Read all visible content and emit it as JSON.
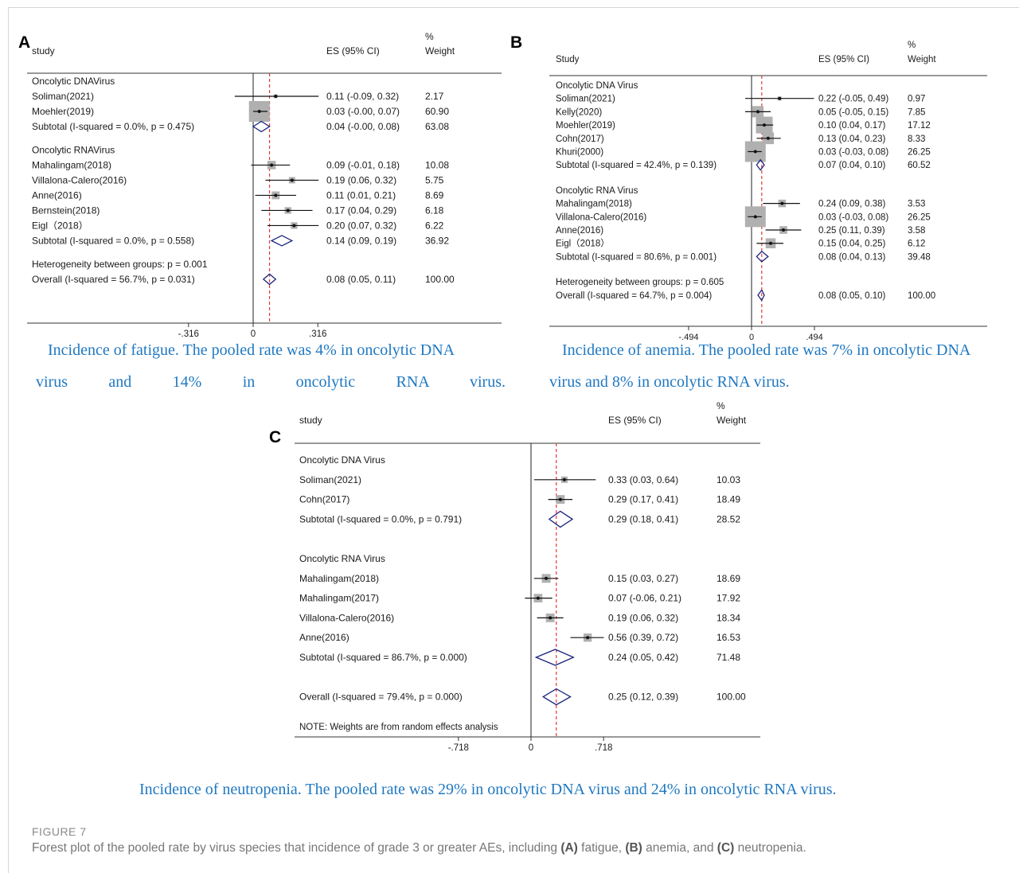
{
  "figure": {
    "label": "FIGURE 7",
    "caption_parts": [
      {
        "text": "Forest plot of the pooled rate by virus species that incidence of grade 3 or greater AEs, including ",
        "bold": false
      },
      {
        "text": "(A)",
        "bold": true
      },
      {
        "text": " fatigue, ",
        "bold": false
      },
      {
        "text": "(B)",
        "bold": true
      },
      {
        "text": " anemia, and ",
        "bold": false
      },
      {
        "text": "(C)",
        "bold": true
      },
      {
        "text": " neutropenia.",
        "bold": false
      }
    ]
  },
  "captions": {
    "A_line1": "Incidence of fatigue. The pooled rate was 4% in oncolytic DNA",
    "A_line2": "virus and 14% in oncolytic RNA virus.",
    "B_line1": "Incidence of anemia. The pooled rate was 7% in oncolytic DNA",
    "B_line2": "virus and 8% in oncolytic RNA virus.",
    "C_line1": "Incidence of neutropenia. The pooled rate was 29% in oncolytic DNA virus and 24% in oncolytic RNA virus."
  },
  "colors": {
    "caption": "#1f78c1",
    "diamond": "#1a237e",
    "ref_line": "#e53935",
    "box": "#b0b0b0"
  },
  "chart_data": [
    {
      "type": "forest",
      "panel": "A",
      "header": {
        "study": "study",
        "es": "ES (95% CI)",
        "pct": "%",
        "weight": "Weight"
      },
      "x_ticks": [
        {
          "v": -0.316,
          "label": "-.316"
        },
        {
          "v": 0,
          "label": "0"
        },
        {
          "v": 0.316,
          "label": ".316"
        }
      ],
      "overall_line": 0.08,
      "groups": [
        {
          "title": "Oncolytic DNAVirus",
          "studies": [
            {
              "name": "Soliman(2021)",
              "es": 0.11,
              "lo": -0.09,
              "hi": 0.32,
              "label": "0.11 (-0.09, 0.32)",
              "weight": "2.17",
              "w": 2.17
            },
            {
              "name": "Moehler(2019)",
              "es": 0.03,
              "lo": -0.0,
              "hi": 0.07,
              "label": "0.03 (-0.00, 0.07)",
              "weight": "60.90",
              "w": 60.9
            }
          ],
          "subtotal": {
            "name": "Subtotal  (I-squared = 0.0%, p = 0.475)",
            "es": 0.04,
            "lo": -0.0,
            "hi": 0.08,
            "label": "0.04 (-0.00, 0.08)",
            "weight": "63.08"
          }
        },
        {
          "title": "Oncolytic RNAVirus",
          "studies": [
            {
              "name": "Mahalingam(2018)",
              "es": 0.09,
              "lo": -0.01,
              "hi": 0.18,
              "label": "0.09 (-0.01, 0.18)",
              "weight": "10.08",
              "w": 10.08
            },
            {
              "name": "Villalona-Calero(2016)",
              "es": 0.19,
              "lo": 0.06,
              "hi": 0.32,
              "label": "0.19 (0.06, 0.32)",
              "weight": "5.75",
              "w": 5.75
            },
            {
              "name": "Anne(2016)",
              "es": 0.11,
              "lo": 0.01,
              "hi": 0.21,
              "label": "0.11 (0.01, 0.21)",
              "weight": "8.69",
              "w": 8.69
            },
            {
              "name": "Bernstein(2018)",
              "es": 0.17,
              "lo": 0.04,
              "hi": 0.29,
              "label": "0.17 (0.04, 0.29)",
              "weight": "6.18",
              "w": 6.18
            },
            {
              "name": "Eigl（2018）",
              "es": 0.2,
              "lo": 0.07,
              "hi": 0.32,
              "label": "0.20 (0.07, 0.32)",
              "weight": "6.22",
              "w": 6.22
            }
          ],
          "subtotal": {
            "name": "Subtotal  (I-squared = 0.0%, p = 0.558)",
            "es": 0.14,
            "lo": 0.09,
            "hi": 0.19,
            "label": "0.14 (0.09, 0.19)",
            "weight": "36.92"
          }
        }
      ],
      "heterogeneity": "Heterogeneity between groups: p = 0.001",
      "overall": {
        "name": "Overall  (I-squared = 56.7%, p = 0.031)",
        "es": 0.08,
        "lo": 0.05,
        "hi": 0.11,
        "label": "0.08 (0.05, 0.11)",
        "weight": "100.00"
      }
    },
    {
      "type": "forest",
      "panel": "B",
      "header": {
        "study": "Study",
        "es": "ES (95% CI)",
        "pct": "%",
        "weight": "Weight"
      },
      "x_ticks": [
        {
          "v": -0.494,
          "label": "-.494"
        },
        {
          "v": 0,
          "label": "0"
        },
        {
          "v": 0.494,
          "label": ".494"
        }
      ],
      "overall_line": 0.08,
      "groups": [
        {
          "title": "Oncolytic DNA Virus",
          "studies": [
            {
              "name": "Soliman(2021)",
              "es": 0.22,
              "lo": -0.05,
              "hi": 0.49,
              "label": "0.22 (-0.05, 0.49)",
              "weight": "0.97",
              "w": 0.97
            },
            {
              "name": "Kelly(2020)",
              "es": 0.05,
              "lo": -0.05,
              "hi": 0.15,
              "label": "0.05 (-0.05, 0.15)",
              "weight": "7.85",
              "w": 7.85
            },
            {
              "name": "Moehler(2019)",
              "es": 0.1,
              "lo": 0.04,
              "hi": 0.17,
              "label": "0.10 (0.04, 0.17)",
              "weight": "17.12",
              "w": 17.12
            },
            {
              "name": "Cohn(2017)",
              "es": 0.13,
              "lo": 0.04,
              "hi": 0.23,
              "label": "0.13 (0.04, 0.23)",
              "weight": "8.33",
              "w": 8.33
            },
            {
              "name": "Khuri(2000)",
              "es": 0.03,
              "lo": -0.03,
              "hi": 0.08,
              "label": "0.03 (-0.03, 0.08)",
              "weight": "26.25",
              "w": 26.25
            }
          ],
          "subtotal": {
            "name": "Subtotal  (I-squared = 42.4%, p = 0.139)",
            "es": 0.07,
            "lo": 0.04,
            "hi": 0.1,
            "label": "0.07 (0.04, 0.10)",
            "weight": "60.52"
          }
        },
        {
          "title": "Oncolytic RNA Virus",
          "studies": [
            {
              "name": "Mahalingam(2018)",
              "es": 0.24,
              "lo": 0.09,
              "hi": 0.38,
              "label": "0.24 (0.09, 0.38)",
              "weight": "3.53",
              "w": 3.53
            },
            {
              "name": "Villalona-Calero(2016)",
              "es": 0.03,
              "lo": -0.03,
              "hi": 0.08,
              "label": "0.03 (-0.03, 0.08)",
              "weight": "26.25",
              "w": 26.25
            },
            {
              "name": "Anne(2016)",
              "es": 0.25,
              "lo": 0.11,
              "hi": 0.39,
              "label": "0.25 (0.11, 0.39)",
              "weight": "3.58",
              "w": 3.58
            },
            {
              "name": "Eigl（2018）",
              "es": 0.15,
              "lo": 0.04,
              "hi": 0.25,
              "label": "0.15 (0.04, 0.25)",
              "weight": "6.12",
              "w": 6.12
            }
          ],
          "subtotal": {
            "name": "Subtotal  (I-squared = 80.6%, p = 0.001)",
            "es": 0.08,
            "lo": 0.04,
            "hi": 0.13,
            "label": "0.08 (0.04, 0.13)",
            "weight": "39.48"
          }
        }
      ],
      "heterogeneity": "Heterogeneity between groups: p = 0.605",
      "overall": {
        "name": "Overall  (I-squared = 64.7%, p = 0.004)",
        "es": 0.08,
        "lo": 0.05,
        "hi": 0.1,
        "label": "0.08 (0.05, 0.10)",
        "weight": "100.00"
      }
    },
    {
      "type": "forest",
      "panel": "C",
      "header": {
        "study": "study",
        "es": "ES (95% CI)",
        "pct": "%",
        "weight": "Weight"
      },
      "x_ticks": [
        {
          "v": -0.718,
          "label": "-.718"
        },
        {
          "v": 0,
          "label": "0"
        },
        {
          "v": 0.718,
          "label": ".718"
        }
      ],
      "overall_line": 0.25,
      "groups": [
        {
          "title": "Oncolytic DNA Virus",
          "studies": [
            {
              "name": "Soliman(2021)",
              "es": 0.33,
              "lo": 0.03,
              "hi": 0.64,
              "label": "0.33 (0.03, 0.64)",
              "weight": "10.03",
              "w": 10.03
            },
            {
              "name": "Cohn(2017)",
              "es": 0.29,
              "lo": 0.17,
              "hi": 0.41,
              "label": "0.29 (0.17, 0.41)",
              "weight": "18.49",
              "w": 18.49
            }
          ],
          "subtotal": {
            "name": "Subtotal  (I-squared = 0.0%, p = 0.791)",
            "es": 0.29,
            "lo": 0.18,
            "hi": 0.41,
            "label": "0.29 (0.18, 0.41)",
            "weight": "28.52"
          }
        },
        {
          "title": "Oncolytic RNA Virus",
          "studies": [
            {
              "name": "Mahalingam(2018)",
              "es": 0.15,
              "lo": 0.03,
              "hi": 0.27,
              "label": "0.15 (0.03, 0.27)",
              "weight": "18.69",
              "w": 18.69
            },
            {
              "name": "Mahalingam(2017)",
              "es": 0.07,
              "lo": -0.06,
              "hi": 0.21,
              "label": "0.07 (-0.06, 0.21)",
              "weight": "17.92",
              "w": 17.92
            },
            {
              "name": "Villalona-Calero(2016)",
              "es": 0.19,
              "lo": 0.06,
              "hi": 0.32,
              "label": "0.19 (0.06, 0.32)",
              "weight": "18.34",
              "w": 18.34
            },
            {
              "name": "Anne(2016)",
              "es": 0.56,
              "lo": 0.39,
              "hi": 0.72,
              "label": "0.56 (0.39, 0.72)",
              "weight": "16.53",
              "w": 16.53
            }
          ],
          "subtotal": {
            "name": "Subtotal  (I-squared = 86.7%, p = 0.000)",
            "es": 0.24,
            "lo": 0.05,
            "hi": 0.42,
            "label": "0.24 (0.05, 0.42)",
            "weight": "71.48"
          }
        }
      ],
      "heterogeneity": "",
      "overall": {
        "name": "Overall  (I-squared = 79.4%, p = 0.000)",
        "es": 0.25,
        "lo": 0.12,
        "hi": 0.39,
        "label": "0.25 (0.12, 0.39)",
        "weight": "100.00"
      },
      "note": "NOTE: Weights are from random effects analysis"
    }
  ]
}
